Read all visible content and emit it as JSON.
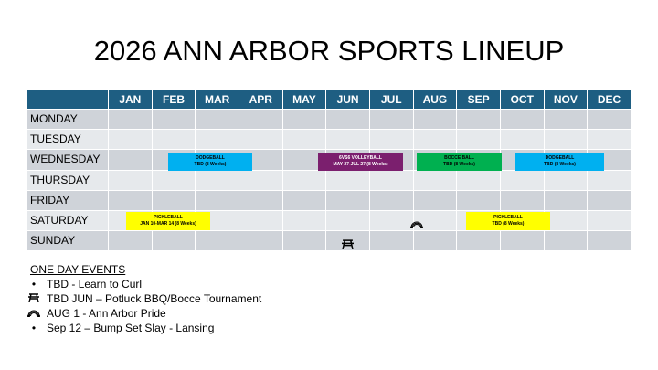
{
  "title": "2026 ANN ARBOR SPORTS LINEUP",
  "months": [
    "JAN",
    "FEB",
    "MAR",
    "APR",
    "MAY",
    "JUN",
    "JUL",
    "AUG",
    "SEP",
    "OCT",
    "NOV",
    "DEC"
  ],
  "days": [
    "MONDAY",
    "TUESDAY",
    "WEDNESDAY",
    "THURSDAY",
    "FRIDAY",
    "SATURDAY",
    "SUNDAY"
  ],
  "colors": {
    "header": "#1e5e82",
    "dodgeball": "#00b0f0",
    "volleyball": "#7b1f6e",
    "bocce": "#00b050",
    "pickleball": "#ffff00"
  },
  "leagues": [
    {
      "name": "DODGEBALL",
      "detail": "TBD (8 Weeks)",
      "day": "WEDNESDAY"
    },
    {
      "name": "6VS6 VOLLEYBALL",
      "detail": "MAY 27-JUL 27 (8 Weeks)",
      "day": "WEDNESDAY"
    },
    {
      "name": "BOCCE BALL",
      "detail": "TBD (8 Weeks)",
      "day": "WEDNESDAY"
    },
    {
      "name": "DODGEBALL",
      "detail": "TBD (8 Weeks)",
      "day": "WEDNESDAY"
    },
    {
      "name": "PICKLEBALL",
      "detail": "JAN 10-MAR 14 (8 Weeks)",
      "day": "SATURDAY"
    },
    {
      "name": "PICKLEBALL",
      "detail": "TBD (8 Weeks)",
      "day": "SATURDAY"
    }
  ],
  "events": {
    "heading": "ONE DAY EVENTS",
    "items": [
      {
        "icon": "bullet",
        "text": "TBD - Learn to Curl"
      },
      {
        "icon": "picnic-table",
        "text": "TBD JUN – Potluck BBQ/Bocce Tournament"
      },
      {
        "icon": "rainbow",
        "text": "AUG 1 - Ann Arbor Pride"
      },
      {
        "icon": "bullet",
        "text": "Sep 12 – Bump Set Slay - Lansing"
      }
    ]
  }
}
